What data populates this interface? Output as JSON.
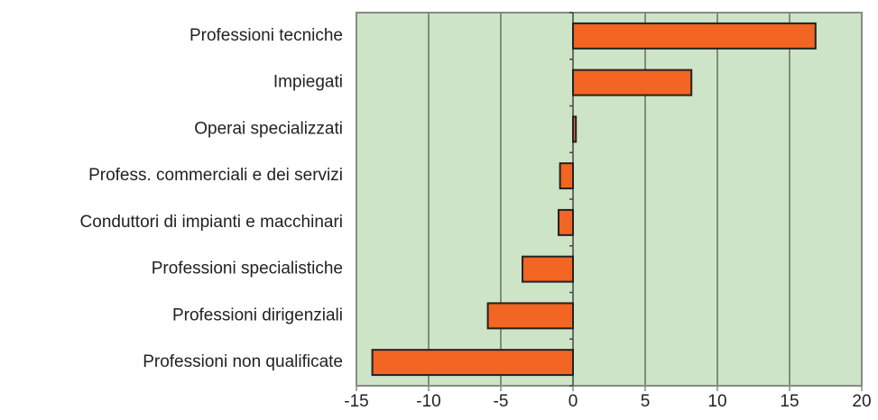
{
  "chart_data": {
    "type": "hbar",
    "categories": [
      "Professioni tecniche",
      "Impiegati",
      "Operai specializzati",
      "Profess. commerciali e dei servizi",
      "Conduttori di impianti e macchinari",
      "Professioni specialistiche",
      "Professioni dirigenziali",
      "Professioni non qualificate"
    ],
    "values": [
      16.8,
      8.2,
      0.2,
      -0.9,
      -1.0,
      -3.5,
      -5.9,
      -13.9
    ],
    "color": "#f26522",
    "background": "#cde5c6",
    "xlim": [
      -15,
      20
    ],
    "xticks": [
      -15,
      -10,
      -5,
      0,
      5,
      10,
      15,
      20
    ],
    "grid": true
  }
}
